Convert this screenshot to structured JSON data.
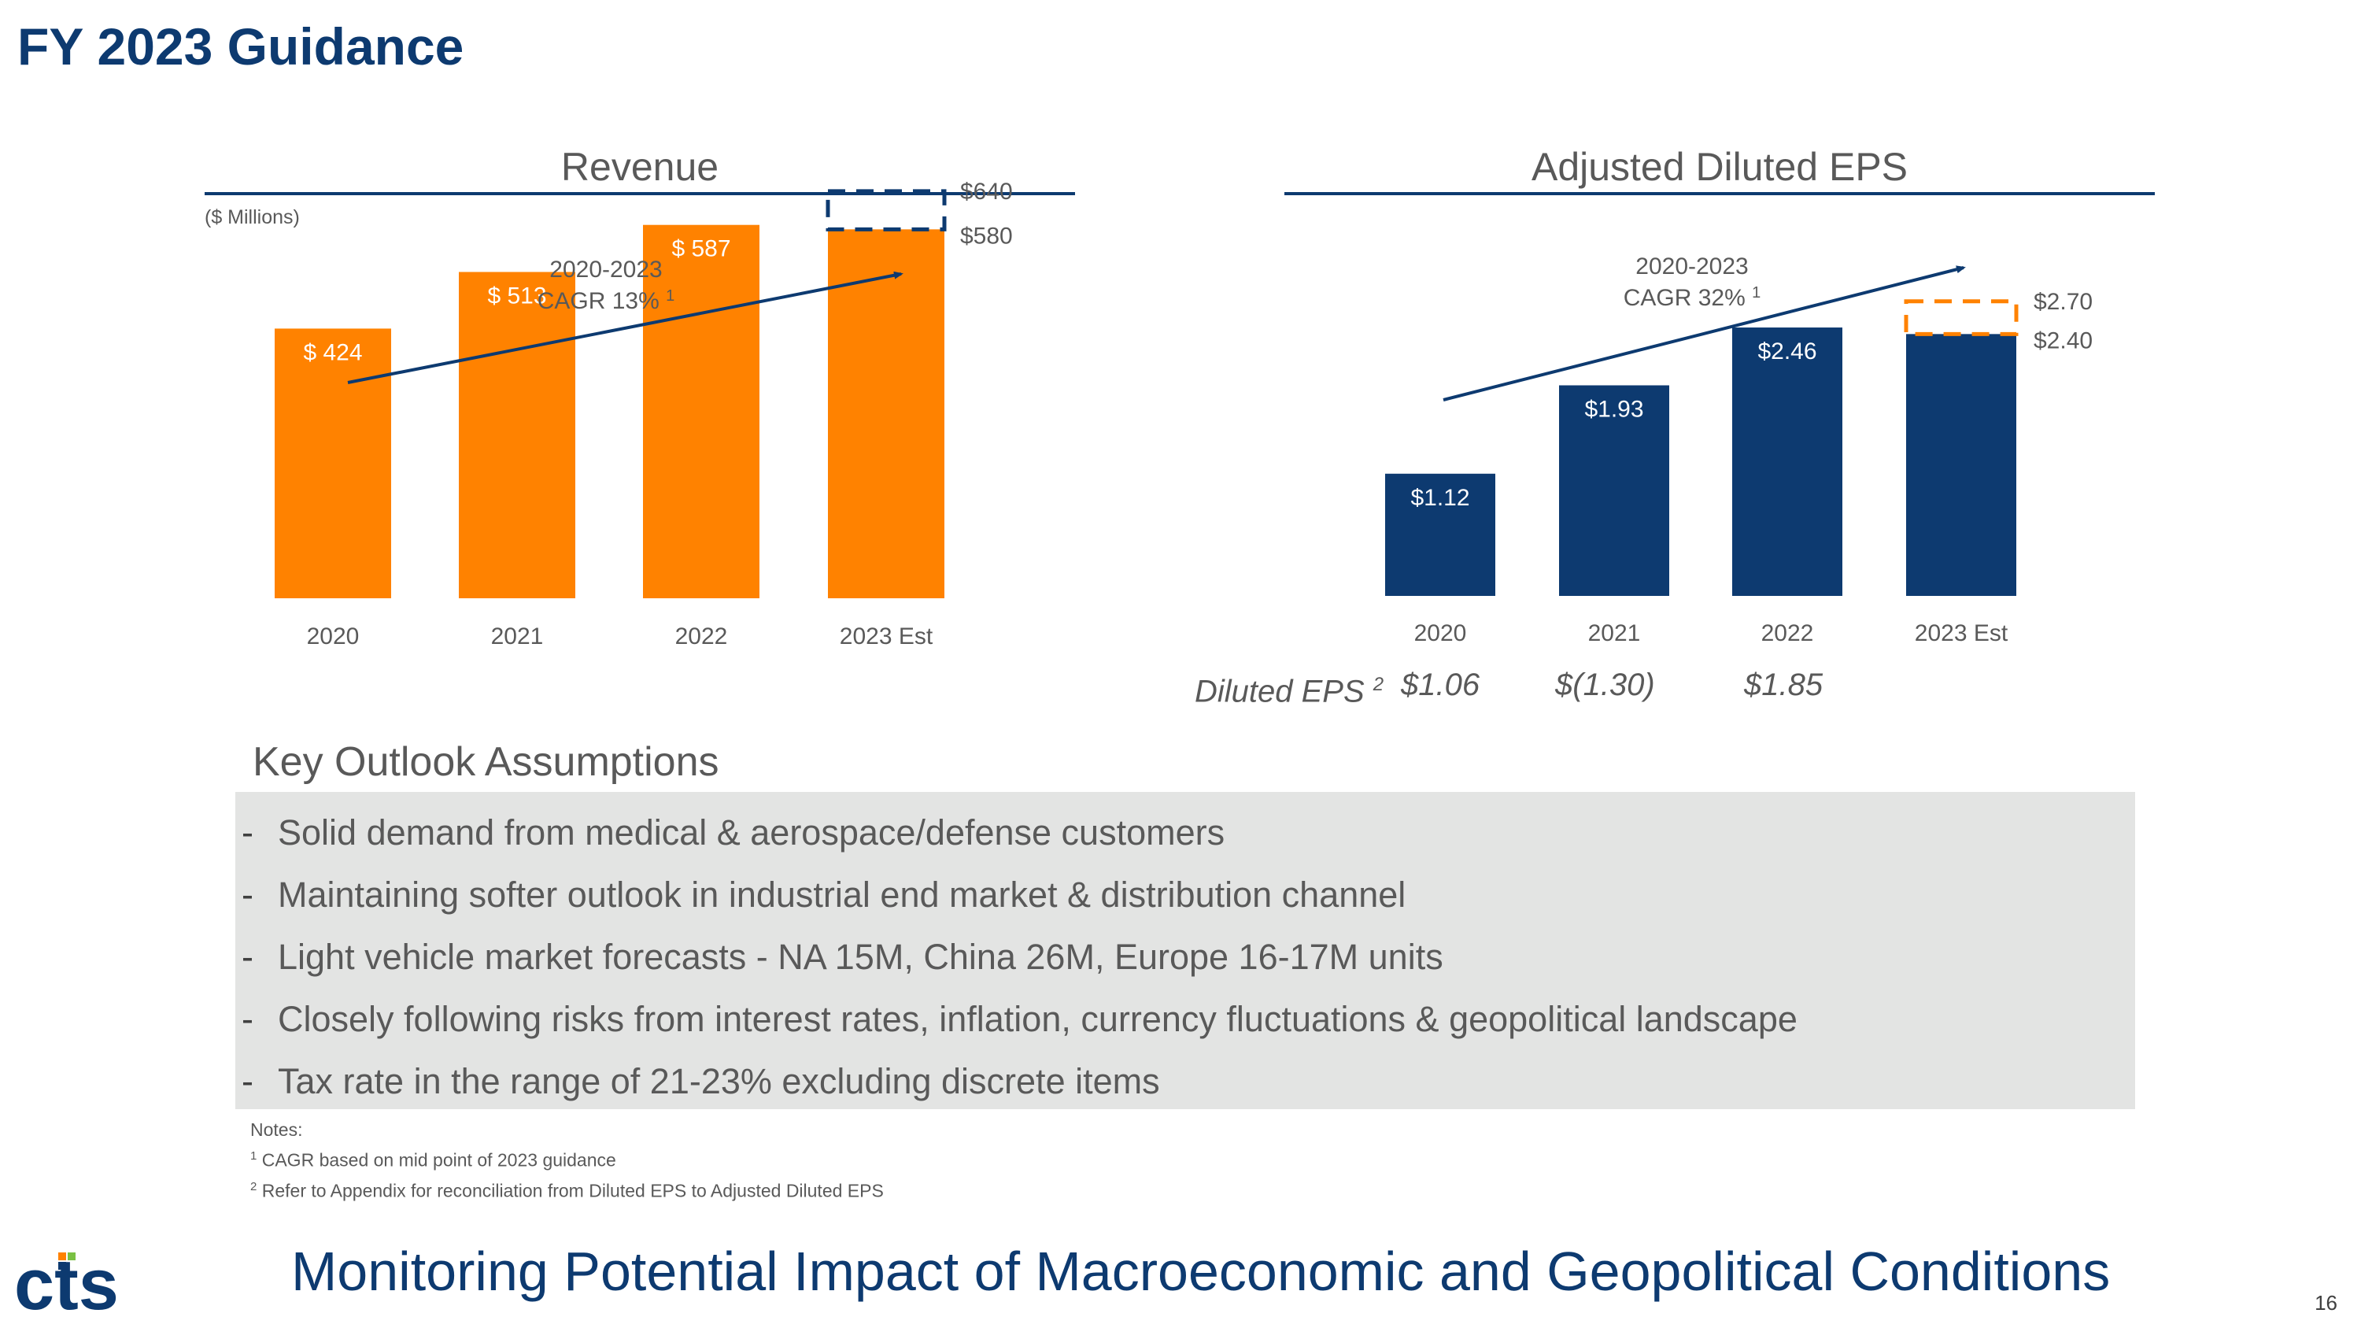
{
  "slide": {
    "title": "FY 2023 Guidance",
    "footer_title": "Monitoring Potential Impact of Macroeconomic and Geopolitical Conditions",
    "page_number": "16",
    "logo_text": "cts"
  },
  "colors": {
    "revenue_bar": "#ff8200",
    "eps_bar": "#0d3a70",
    "title": "#0d3a70",
    "panel_bg": "#e3e4e3"
  },
  "chart_data": [
    {
      "type": "bar",
      "title": "Revenue",
      "units_label": "($ Millions)",
      "categories": [
        "2020",
        "2021",
        "2022",
        "2023 Est"
      ],
      "values": [
        424,
        513,
        587,
        580
      ],
      "value_labels": [
        "$ 424",
        "$ 513",
        "$ 587",
        ""
      ],
      "guidance_range": {
        "low": 580,
        "high": 640,
        "low_label": "$580",
        "high_label": "$640"
      },
      "cagr_period": "2020-2023",
      "cagr_text": "CAGR 13%",
      "cagr_footnote": "1",
      "bar_color": "#ff8200"
    },
    {
      "type": "bar",
      "title": "Adjusted Diluted EPS",
      "categories": [
        "2020",
        "2021",
        "2022",
        "2023 Est"
      ],
      "values": [
        1.12,
        1.93,
        2.46,
        2.4
      ],
      "value_labels": [
        "$1.12",
        "$1.93",
        "$2.46",
        ""
      ],
      "guidance_range": {
        "low": 2.4,
        "high": 2.7,
        "low_label": "$2.40",
        "high_label": "$2.70"
      },
      "cagr_period": "2020-2023",
      "cagr_text": "CAGR 32%",
      "cagr_footnote": "1",
      "bar_color": "#0d3a70"
    }
  ],
  "diluted_eps": {
    "label": "Diluted EPS",
    "footnote": "2",
    "values": [
      "$1.06",
      "$(1.30)",
      "$1.85"
    ]
  },
  "key_outlook": {
    "heading": "Key Outlook Assumptions",
    "bullet": "-",
    "items": [
      "Solid demand from medical & aerospace/defense customers",
      "Maintaining softer outlook in industrial end market & distribution channel",
      "Light vehicle market forecasts - NA 15M, China 26M, Europe 16-17M units",
      "Closely following risks from interest rates, inflation, currency fluctuations & geopolitical landscape",
      "Tax rate in the range of 21-23% excluding discrete items"
    ]
  },
  "notes": {
    "heading": "Notes:",
    "items": [
      {
        "mark": "1",
        "text": "CAGR based on mid point of 2023 guidance"
      },
      {
        "mark": "2",
        "text": "Refer to Appendix for reconciliation from Diluted EPS to Adjusted Diluted EPS"
      }
    ]
  }
}
